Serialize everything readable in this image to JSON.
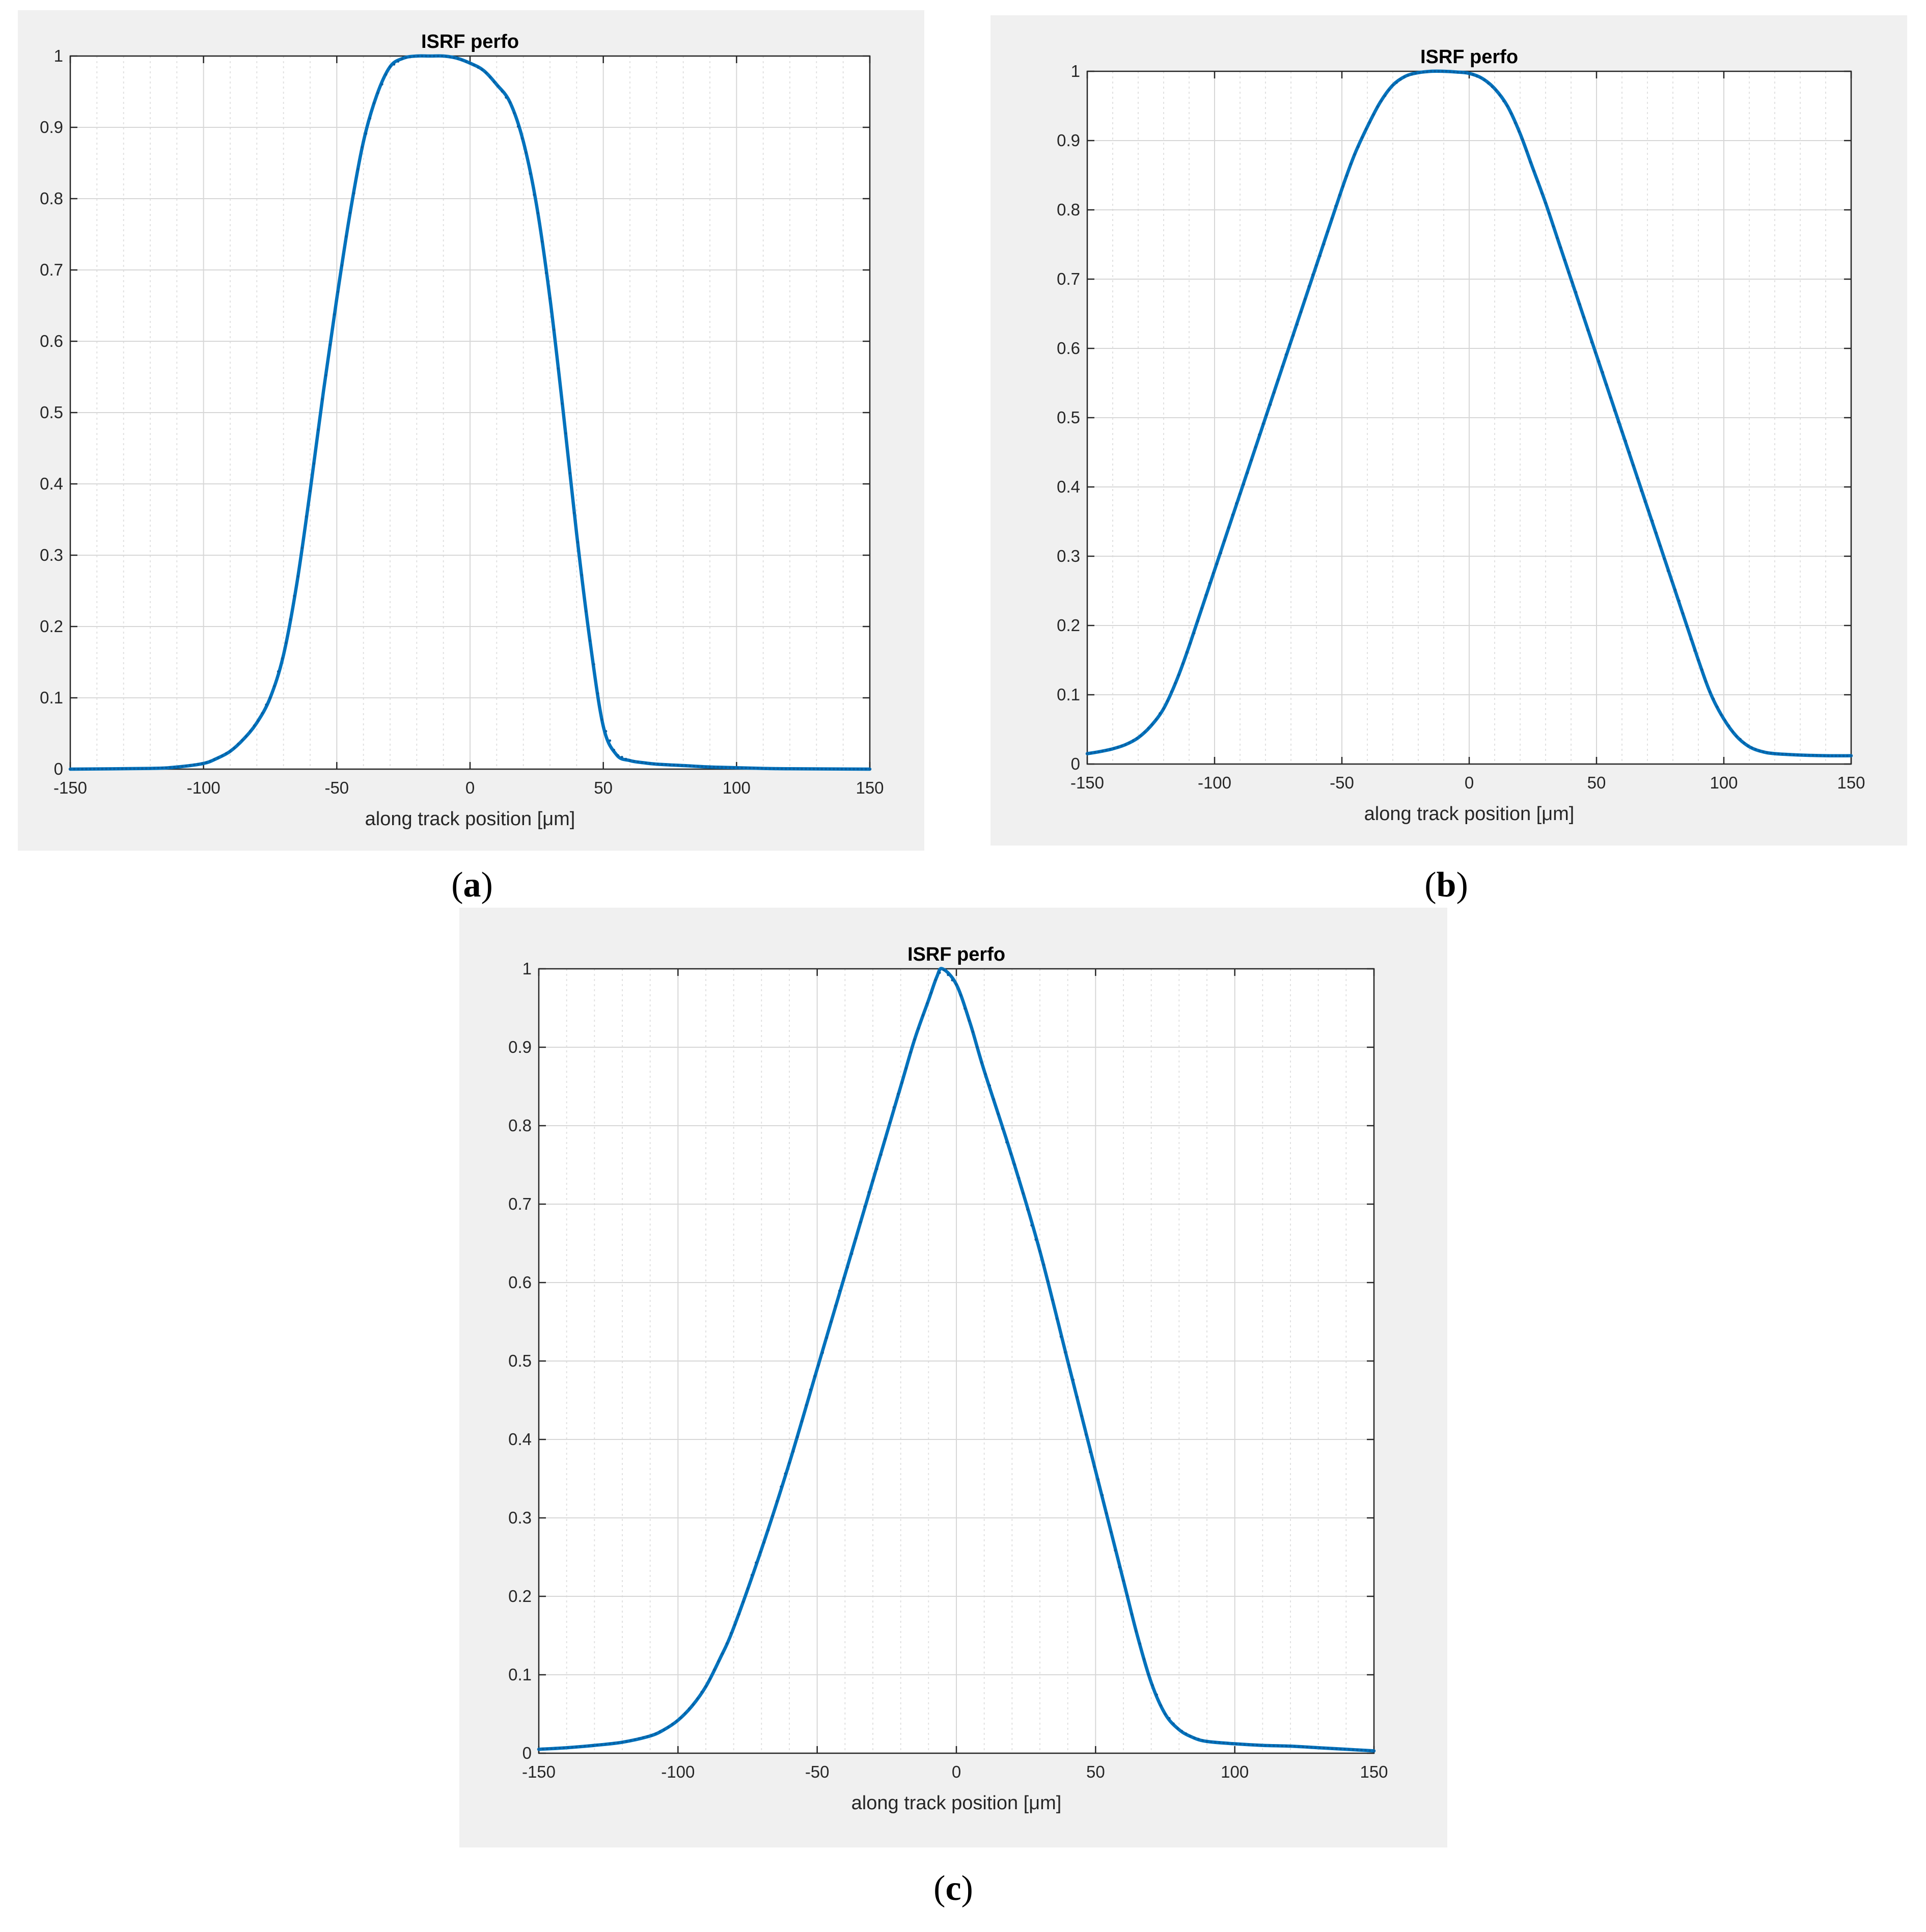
{
  "figure": {
    "panels": [
      {
        "caption_open": "(",
        "caption_letter": "a",
        "caption_close": ")"
      },
      {
        "caption_open": "(",
        "caption_letter": "b",
        "caption_close": ")"
      },
      {
        "caption_open": "(",
        "caption_letter": "c",
        "caption_close": ")"
      }
    ]
  },
  "colors": {
    "series": "#0072bd",
    "panel_background": "#f0f0f0",
    "axes_background": "#ffffff",
    "grid": "#d7d7d7"
  },
  "chart_data": [
    {
      "type": "line",
      "title": "ISRF perfo",
      "xlabel": "along track position [μm]",
      "ylabel": "",
      "xlim": [
        -150,
        150
      ],
      "ylim": [
        0,
        1
      ],
      "xticks": [
        -150,
        -100,
        -50,
        0,
        50,
        100,
        150
      ],
      "yticks": [
        0,
        0.1,
        0.2,
        0.3,
        0.4,
        0.5,
        0.6,
        0.7,
        0.8,
        0.9,
        1
      ],
      "xtick_labels": [
        "-150",
        "-100",
        "-50",
        "0",
        "50",
        "100",
        "150"
      ],
      "ytick_labels": [
        "0",
        "0.1",
        "0.2",
        "0.3",
        "0.4",
        "0.5",
        "0.6",
        "0.7",
        "0.8",
        "0.9",
        "1"
      ],
      "grid": true,
      "minor_grid": true,
      "legend": "none",
      "series": [
        {
          "x": [
            -150,
            -120,
            -110,
            -100,
            -95,
            -90,
            -85,
            -80,
            -75,
            -70,
            -65,
            -60,
            -55,
            -50,
            -45,
            -40,
            -35,
            -30,
            -25,
            -20,
            -15,
            -10,
            -5,
            0,
            5,
            10,
            15,
            20,
            25,
            30,
            35,
            40,
            45,
            50,
            55,
            60,
            65,
            70,
            80,
            90,
            100,
            110,
            120,
            150
          ],
          "y": [
            0,
            0.001,
            0.003,
            0.008,
            0.015,
            0.025,
            0.042,
            0.065,
            0.1,
            0.16,
            0.26,
            0.39,
            0.53,
            0.66,
            0.78,
            0.88,
            0.945,
            0.985,
            0.997,
            1,
            1,
            1,
            0.997,
            0.99,
            0.98,
            0.96,
            0.935,
            0.88,
            0.79,
            0.66,
            0.5,
            0.33,
            0.18,
            0.06,
            0.02,
            0.012,
            0.009,
            0.007,
            0.005,
            0.003,
            0.002,
            0.001,
            0.0005,
            0
          ]
        }
      ]
    },
    {
      "type": "line",
      "title": "ISRF perfo",
      "xlabel": "along track position [μm]",
      "ylabel": "",
      "xlim": [
        -150,
        150
      ],
      "ylim": [
        0,
        1
      ],
      "xticks": [
        -150,
        -100,
        -50,
        0,
        50,
        100,
        150
      ],
      "yticks": [
        0,
        0.1,
        0.2,
        0.3,
        0.4,
        0.5,
        0.6,
        0.7,
        0.8,
        0.9,
        1
      ],
      "xtick_labels": [
        "-150",
        "-100",
        "-50",
        "0",
        "50",
        "100",
        "150"
      ],
      "ytick_labels": [
        "0",
        "0.1",
        "0.2",
        "0.3",
        "0.4",
        "0.5",
        "0.6",
        "0.7",
        "0.8",
        "0.9",
        "1"
      ],
      "grid": true,
      "minor_grid": true,
      "legend": "none",
      "series": [
        {
          "x": [
            -150,
            -145,
            -140,
            -135,
            -130,
            -125,
            -120,
            -115,
            -110,
            -100,
            -90,
            -80,
            -70,
            -60,
            -50,
            -45,
            -40,
            -35,
            -30,
            -25,
            -20,
            -15,
            -10,
            -5,
            0,
            5,
            10,
            15,
            20,
            25,
            30,
            35,
            40,
            50,
            60,
            70,
            80,
            90,
            95,
            100,
            105,
            110,
            115,
            120,
            130,
            140,
            150
          ],
          "y": [
            0.015,
            0.018,
            0.022,
            0.028,
            0.038,
            0.055,
            0.08,
            0.12,
            0.17,
            0.28,
            0.39,
            0.5,
            0.61,
            0.72,
            0.83,
            0.88,
            0.92,
            0.955,
            0.98,
            0.993,
            0.998,
            1,
            1,
            0.999,
            0.997,
            0.99,
            0.975,
            0.95,
            0.91,
            0.86,
            0.81,
            0.755,
            0.7,
            0.59,
            0.48,
            0.37,
            0.26,
            0.15,
            0.1,
            0.065,
            0.04,
            0.025,
            0.018,
            0.015,
            0.013,
            0.012,
            0.012
          ]
        }
      ]
    },
    {
      "type": "line",
      "title": "ISRF perfo",
      "xlabel": "along track position [μm]",
      "ylabel": "",
      "xlim": [
        -150,
        150
      ],
      "ylim": [
        0,
        1
      ],
      "xticks": [
        -150,
        -100,
        -50,
        0,
        50,
        100,
        150
      ],
      "yticks": [
        0,
        0.1,
        0.2,
        0.3,
        0.4,
        0.5,
        0.6,
        0.7,
        0.8,
        0.9,
        1
      ],
      "xtick_labels": [
        "-150",
        "-100",
        "-50",
        "0",
        "50",
        "100",
        "150"
      ],
      "ytick_labels": [
        "0",
        "0.1",
        "0.2",
        "0.3",
        "0.4",
        "0.5",
        "0.6",
        "0.7",
        "0.8",
        "0.9",
        "1"
      ],
      "grid": true,
      "minor_grid": true,
      "legend": "none",
      "series": [
        {
          "x": [
            -150,
            -140,
            -130,
            -120,
            -110,
            -105,
            -100,
            -95,
            -90,
            -85,
            -80,
            -70,
            -60,
            -50,
            -40,
            -30,
            -20,
            -15,
            -10,
            -7,
            -5,
            0,
            5,
            10,
            20,
            30,
            40,
            50,
            60,
            65,
            70,
            75,
            80,
            85,
            90,
            100,
            110,
            120,
            130,
            140,
            150
          ],
          "y": [
            0.005,
            0.007,
            0.01,
            0.014,
            0.022,
            0.03,
            0.042,
            0.06,
            0.085,
            0.12,
            0.16,
            0.26,
            0.37,
            0.49,
            0.61,
            0.73,
            0.85,
            0.91,
            0.96,
            0.99,
            1,
            0.98,
            0.93,
            0.87,
            0.76,
            0.64,
            0.5,
            0.36,
            0.22,
            0.15,
            0.09,
            0.05,
            0.03,
            0.02,
            0.015,
            0.012,
            0.01,
            0.009,
            0.007,
            0.005,
            0.003
          ]
        }
      ]
    }
  ]
}
